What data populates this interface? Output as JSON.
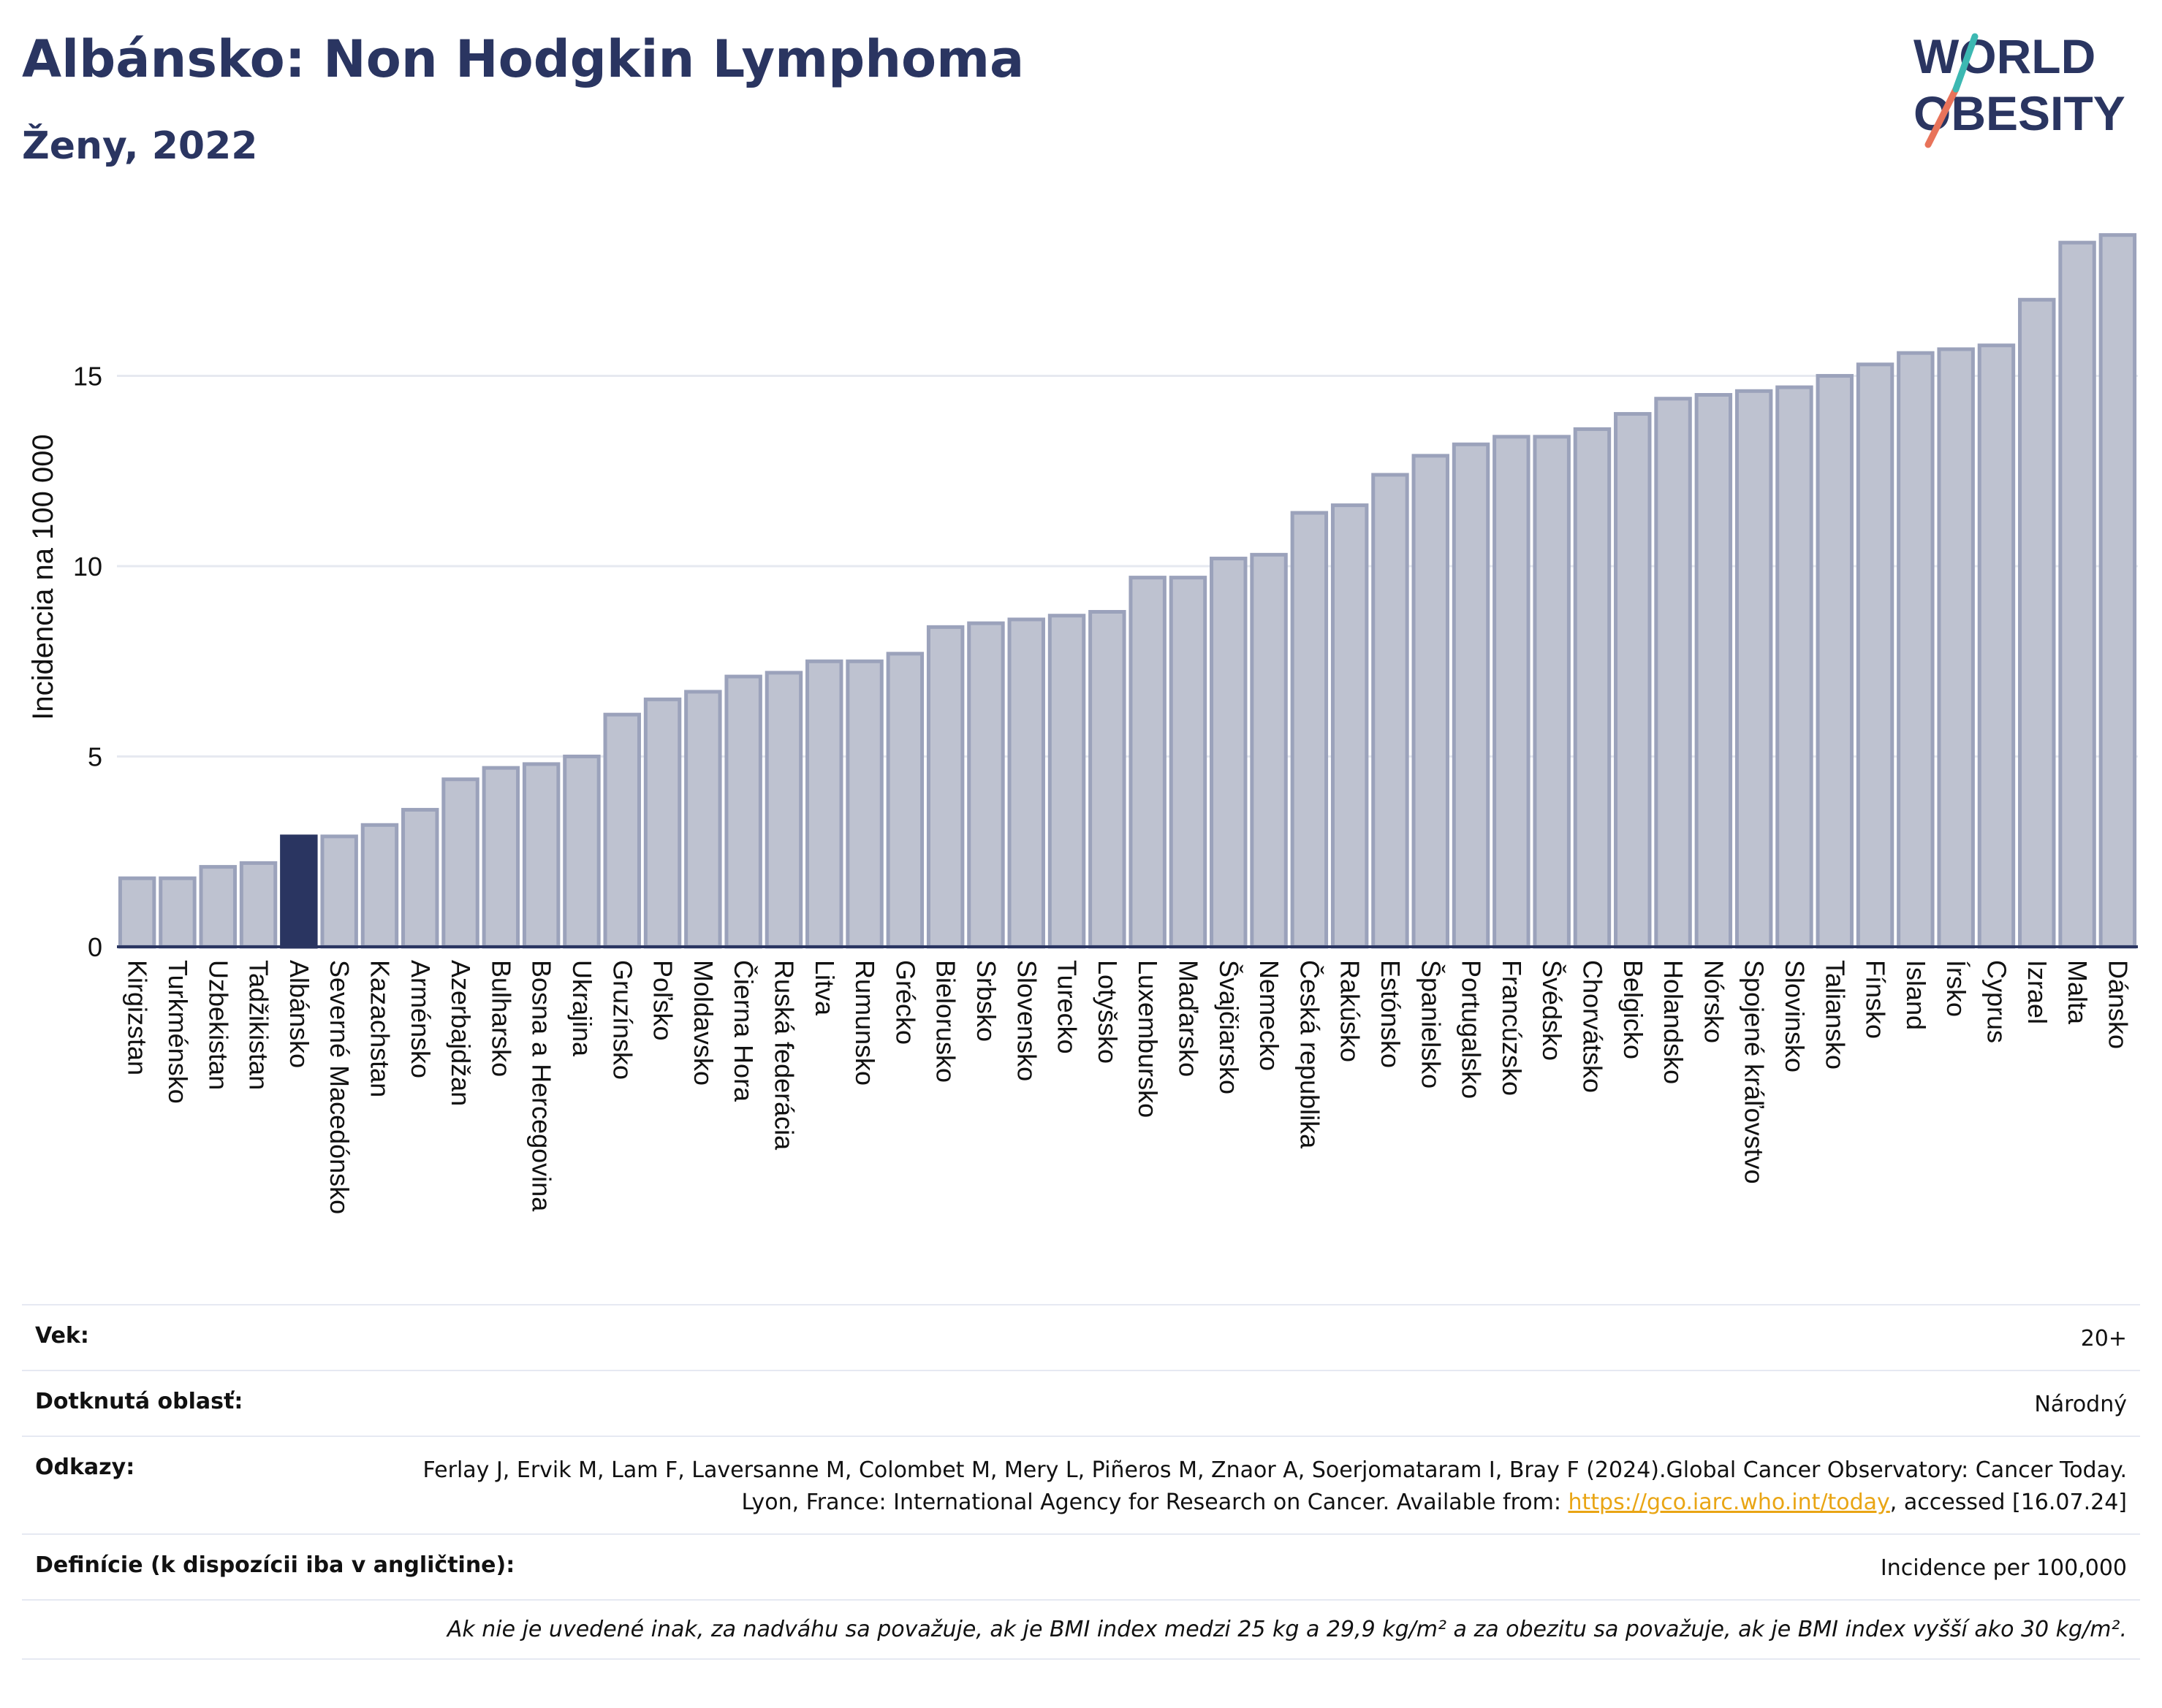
{
  "header": {
    "title": "Albánsko: Non Hodgkin Lymphoma",
    "subtitle": "Ženy, 2022"
  },
  "logo": {
    "line1": "WORLD",
    "line2": "OBESITY"
  },
  "chart_data": {
    "type": "bar",
    "ylabel": "Incidencia na 100 000",
    "xlabel": "",
    "ylim": [
      0,
      19.5
    ],
    "yticks": [
      0,
      5,
      10,
      15
    ],
    "grid": true,
    "highlight": "Albánsko",
    "colors": {
      "bar": "#bec2d0",
      "bar_edge": "#9ba2bb",
      "highlight": "#2a3561",
      "axis": "#2a3561",
      "grid": "#e6e9f0"
    },
    "categories": [
      "Kirgizstan",
      "Turkménsko",
      "Uzbekistan",
      "Tadžikistan",
      "Albánsko",
      "Severné Macedónsko",
      "Kazachstan",
      "Arménsko",
      "Azerbajdžan",
      "Bulharsko",
      "Bosna a Hercegovina",
      "Ukrajina",
      "Gruzínsko",
      "Poľsko",
      "Moldavsko",
      "Čierna Hora",
      "Ruská federácia",
      "Litva",
      "Rumunsko",
      "Grécko",
      "Bielorusko",
      "Srbsko",
      "Slovensko",
      "Turecko",
      "Lotyšsko",
      "Luxembursko",
      "Maďarsko",
      "Švajčiarsko",
      "Nemecko",
      "Česká republika",
      "Rakúsko",
      "Estónsko",
      "Španielsko",
      "Portugalsko",
      "Francúzsko",
      "Švédsko",
      "Chorvátsko",
      "Belgicko",
      "Holandsko",
      "Nórsko",
      "Spojené kráľovstvo",
      "Slovinsko",
      "Taliansko",
      "Fínsko",
      "Island",
      "Írsko",
      "Cyprus",
      "Izrael",
      "Malta",
      "Dánsko"
    ],
    "values": [
      1.8,
      1.8,
      2.1,
      2.2,
      2.9,
      2.9,
      3.2,
      3.6,
      4.4,
      4.7,
      4.8,
      5.0,
      6.1,
      6.5,
      6.7,
      7.1,
      7.2,
      7.5,
      7.5,
      7.7,
      8.4,
      8.5,
      8.6,
      8.7,
      8.8,
      9.7,
      9.7,
      10.2,
      10.3,
      11.4,
      11.6,
      12.4,
      12.9,
      13.2,
      13.4,
      13.4,
      13.6,
      14.0,
      14.4,
      14.5,
      14.6,
      14.7,
      15.0,
      15.3,
      15.6,
      15.7,
      15.8,
      17.0,
      18.5,
      18.7
    ]
  },
  "meta": {
    "age_label": "Vek:",
    "age_value": "20+",
    "area_label": "Dotknutá oblasť:",
    "area_value": "Národný",
    "refs_label": "Odkazy:",
    "refs_text": "Ferlay J, Ervik M, Lam F, Laversanne M, Colombet M, Mery L, Piñeros M, Znaor A, Soerjomataram I, Bray F (2024).Global Cancer Observatory: Cancer Today. Lyon, France: International Agency for Research on Cancer. Available from: ",
    "refs_link": "https://gco.iarc.who.int/today",
    "refs_tail": ", accessed [16.07.24]",
    "defs_label": "Definície (k dispozícii iba v angličtine):",
    "defs_value": "Incidence per 100,000",
    "note": "Ak nie je uvedené inak, za nadváhu sa považuje, ak je BMI index medzi 25 kg a 29,9 kg/m² a za obezitu sa považuje, ak je BMI index vyšší ako 30 kg/m²."
  }
}
